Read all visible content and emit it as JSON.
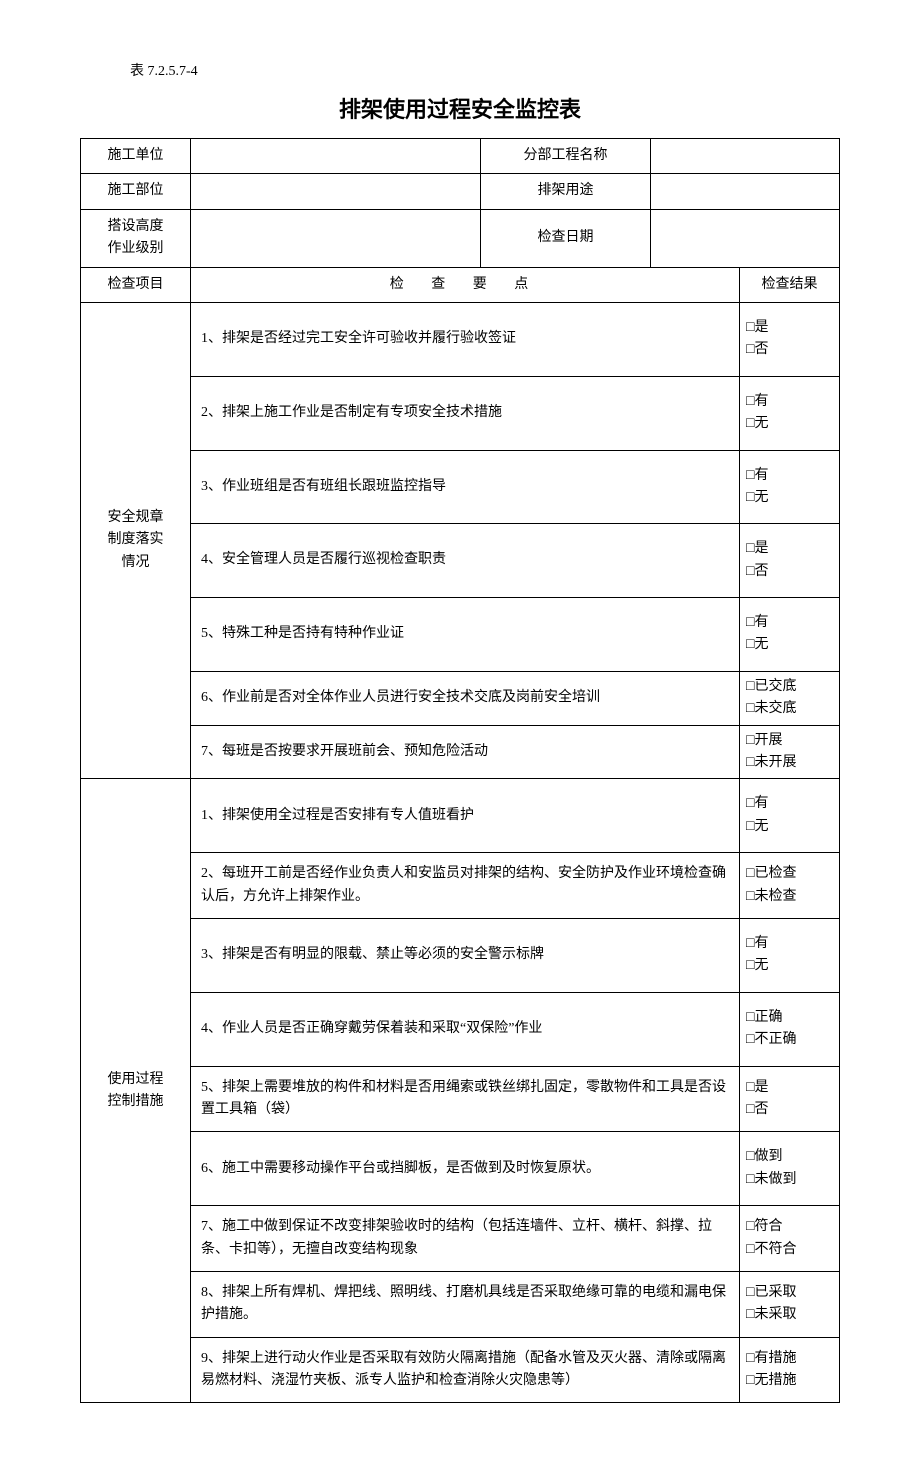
{
  "table_number": "表 7.2.5.7-4",
  "title": "排架使用过程安全监控表",
  "header_rows": [
    {
      "label1": "施工单位",
      "val1": "",
      "label2": "分部工程名称",
      "val2": ""
    },
    {
      "label1": "施工部位",
      "val1": "",
      "label2": "排架用途",
      "val2": ""
    },
    {
      "label1": "搭设高度\n作业级别",
      "val1": "",
      "label2": "检查日期",
      "val2": ""
    }
  ],
  "columns_header": {
    "item": "检查项目",
    "points": "检 查 要 点",
    "result": "检查结果"
  },
  "section1": {
    "label": "安全规章制度落实情况",
    "rows": [
      {
        "text": "1、排架是否经过完工安全许可验收并履行验收签证",
        "opts": [
          "□是",
          "□否"
        ]
      },
      {
        "text": "2、排架上施工作业是否制定有专项安全技术措施",
        "opts": [
          "□有",
          "□无"
        ]
      },
      {
        "text": "3、作业班组是否有班组长跟班监控指导",
        "opts": [
          "□有",
          "□无"
        ]
      },
      {
        "text": "4、安全管理人员是否履行巡视检查职责",
        "opts": [
          "□是",
          "□否"
        ]
      },
      {
        "text": "5、特殊工种是否持有特种作业证",
        "opts": [
          "□有",
          "□无"
        ]
      },
      {
        "text": "6、作业前是否对全体作业人员进行安全技术交底及岗前安全培训",
        "opts": [
          "□已交底",
          "□未交底"
        ]
      },
      {
        "text": "7、每班是否按要求开展班前会、预知危险活动",
        "opts": [
          "□开展",
          "□未开展"
        ]
      }
    ]
  },
  "section2": {
    "label": "使用过程控制措施",
    "rows": [
      {
        "text": "1、排架使用全过程是否安排有专人值班看护",
        "opts": [
          "□有",
          "□无"
        ]
      },
      {
        "text": "2、每班开工前是否经作业负责人和安监员对排架的结构、安全防护及作业环境检查确认后，方允许上排架作业。",
        "opts": [
          "□已检查",
          "□未检查"
        ]
      },
      {
        "text": "3、排架是否有明显的限载、禁止等必须的安全警示标牌",
        "opts": [
          "□有",
          "□无"
        ]
      },
      {
        "text": "4、作业人员是否正确穿戴劳保着装和采取“双保险”作业",
        "opts": [
          "□正确",
          "□不正确"
        ]
      },
      {
        "text": "5、排架上需要堆放的构件和材料是否用绳索或铁丝绑扎固定，零散物件和工具是否设置工具箱（袋）",
        "opts": [
          "□是",
          "□否"
        ]
      },
      {
        "text": "6、施工中需要移动操作平台或挡脚板，是否做到及时恢复原状。",
        "opts": [
          "□做到",
          "□未做到"
        ]
      },
      {
        "text": "7、施工中做到保证不改变排架验收时的结构（包括连墙件、立杆、横杆、斜撑、拉条、卡扣等），无擅自改变结构现象",
        "opts": [
          "□符合",
          "□不符合"
        ]
      },
      {
        "text": "8、排架上所有焊机、焊把线、照明线、打磨机具线是否采取绝缘可靠的电缆和漏电保护措施。",
        "opts": [
          "□已采取",
          "□未采取"
        ]
      },
      {
        "text": "9、排架上进行动火作业是否采取有效防火隔离措施（配备水管及灭火器、清除或隔离易燃材料、浇湿竹夹板、派专人监护和检查消除火灾隐患等）",
        "opts": [
          "□有措施",
          "□无措施"
        ]
      }
    ]
  }
}
